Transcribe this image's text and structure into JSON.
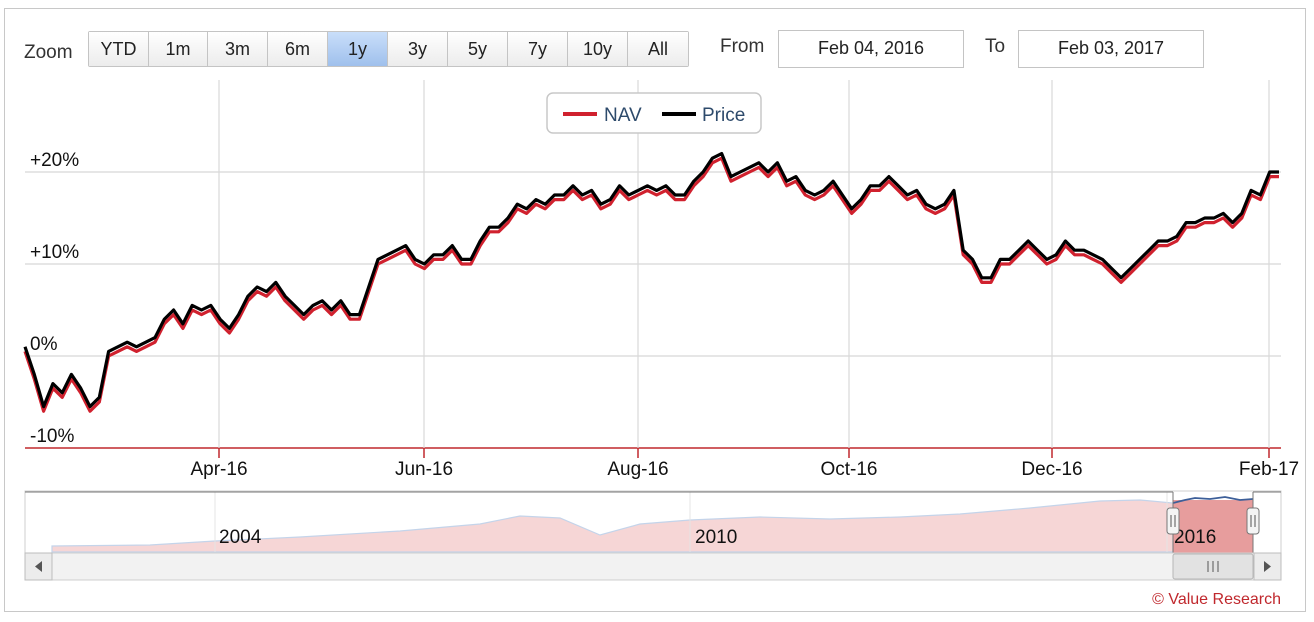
{
  "toolbar": {
    "zoom_label": "Zoom",
    "zoom_buttons": [
      "YTD",
      "1m",
      "3m",
      "6m",
      "1y",
      "3y",
      "5y",
      "7y",
      "10y",
      "All"
    ],
    "active_zoom": "1y",
    "from_label": "From",
    "from_value": "Feb 04, 2016",
    "to_label": "To",
    "to_value": "Feb 03, 2017"
  },
  "chart_data": {
    "type": "line",
    "y_ticks": [
      "+20%",
      "+10%",
      "0%",
      "-10%"
    ],
    "y_tick_values": [
      20,
      10,
      0,
      -10
    ],
    "ylim": [
      -10,
      28
    ],
    "x_ticks": [
      "Apr-16",
      "Jun-16",
      "Aug-16",
      "Oct-16",
      "Dec-16",
      "Feb-17"
    ],
    "grid": "vertical and horizontal",
    "legend_position": "top-center",
    "series": [
      {
        "name": "NAV",
        "color": "#d0212e",
        "values": [
          0.5,
          -2.5,
          -6,
          -3.5,
          -4.5,
          -2.5,
          -4,
          -6,
          -5,
          0,
          0.5,
          1,
          0.5,
          1,
          1.5,
          3.5,
          4.5,
          3,
          5,
          4.5,
          5,
          3.5,
          2.5,
          4,
          6,
          7,
          6.5,
          7.5,
          6,
          5,
          4,
          5,
          5.5,
          4.5,
          5.5,
          4,
          4,
          7,
          10,
          10.5,
          11,
          11.5,
          10,
          9.5,
          10.5,
          10.5,
          11.5,
          10,
          10,
          12,
          13.5,
          13.5,
          14.5,
          16,
          15.5,
          16.5,
          16,
          17,
          17,
          18,
          17,
          17.5,
          16,
          16.5,
          18,
          17,
          17.5,
          18,
          17.5,
          18,
          17,
          17,
          18.5,
          19.5,
          21,
          21.5,
          19,
          19.5,
          20,
          20.5,
          19.5,
          20.5,
          18.5,
          19,
          17.5,
          17,
          17.5,
          18.5,
          17,
          15.5,
          16.5,
          18,
          18,
          19,
          18,
          17,
          17.5,
          16,
          15.5,
          16,
          17.5,
          11,
          10,
          8,
          8,
          10,
          10,
          11,
          12,
          11,
          10,
          10.5,
          12,
          11,
          11,
          10.5,
          10,
          9,
          8,
          9,
          10,
          11,
          12,
          12,
          12.5,
          14,
          14,
          14.5,
          14.5,
          15,
          14,
          15,
          17.5,
          17,
          19.5,
          19.5
        ]
      },
      {
        "name": "Price",
        "color": "#000000",
        "values": [
          1,
          -2,
          -5.5,
          -3,
          -4,
          -2,
          -3.5,
          -5.5,
          -4.5,
          0.5,
          1,
          1.5,
          1,
          1.5,
          2,
          4,
          5,
          3.5,
          5.5,
          5,
          5.5,
          4,
          3,
          4.5,
          6.5,
          7.5,
          7,
          8,
          6.5,
          5.5,
          4.5,
          5.5,
          6,
          5,
          6,
          4.5,
          4.5,
          7.5,
          10.5,
          11,
          11.5,
          12,
          10.5,
          10,
          11,
          11,
          12,
          10.5,
          10.5,
          12.5,
          14,
          14,
          15,
          16.5,
          16,
          17,
          16.5,
          17.5,
          17.5,
          18.5,
          17.5,
          18,
          16.5,
          17,
          18.5,
          17.5,
          18,
          18.5,
          18,
          18.5,
          17.5,
          17.5,
          19,
          20,
          21.5,
          22,
          19.5,
          20,
          20.5,
          21,
          20,
          21,
          19,
          19.5,
          18,
          17.5,
          18,
          19,
          17.5,
          16,
          17,
          18.5,
          18.5,
          19.5,
          18.5,
          17.5,
          18,
          16.5,
          16,
          16.5,
          18,
          11.5,
          10.5,
          8.5,
          8.5,
          10.5,
          10.5,
          11.5,
          12.5,
          11.5,
          10.5,
          11,
          12.5,
          11.5,
          11.5,
          11,
          10.5,
          9.5,
          8.5,
          9.5,
          10.5,
          11.5,
          12.5,
          12.5,
          13,
          14.5,
          14.5,
          15,
          15,
          15.5,
          14.5,
          15.5,
          18,
          17.5,
          20,
          20
        ]
      }
    ],
    "navigator": {
      "year_labels": [
        "2004",
        "2010",
        "2016"
      ]
    }
  },
  "credit": "© Value Research",
  "colors": {
    "nav": "#d0212e",
    "price": "#000000",
    "axis_line": "#c0282d",
    "navigator_fill": "#f6d6d6",
    "selection_fill": "#e79d9d"
  }
}
